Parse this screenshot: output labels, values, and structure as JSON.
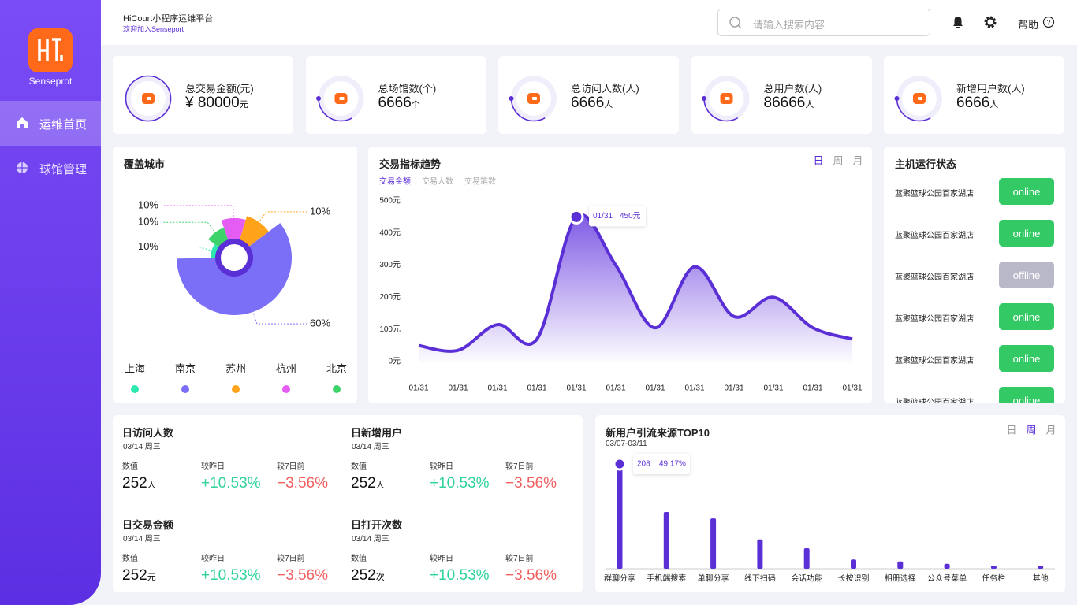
{
  "sidebar": {
    "brand": "Senseprot",
    "menu": [
      "运维首页",
      "球馆管理"
    ],
    "active": "运维首页"
  },
  "header": {
    "title": "HiCourt小程序运维平台",
    "subtitle": "欢迎加入Senseport",
    "search_placeholder": "请输入搜索内容",
    "help": "帮助"
  },
  "stats": [
    {
      "label": "总交易金额(元)",
      "value": "¥ 80000",
      "unit": "元"
    },
    {
      "label": "总场馆数(个)",
      "value": "6666",
      "unit": "个"
    },
    {
      "label": "总访问人数(人)",
      "value": "6666",
      "unit": "人"
    },
    {
      "label": "总用户数(人)",
      "value": "86666",
      "unit": "人"
    },
    {
      "label": "新增用户数(人)",
      "value": "6666",
      "unit": "人"
    }
  ],
  "city_chart": {
    "type": "pie",
    "title": "覆盖城市",
    "categories": [
      "上海",
      "南京",
      "苏州",
      "杭州",
      "北京"
    ],
    "values": [
      10,
      60,
      10,
      10,
      10
    ],
    "value_labels": [
      "10%",
      "60%",
      "10%",
      "10%",
      "10%"
    ],
    "colors": [
      "#2de8b0",
      "#7b6ff7",
      "#ffa31a",
      "#e45cf2",
      "#3ed36a"
    ]
  },
  "trend_chart": {
    "type": "line",
    "title": "交易指标趋势",
    "periods": [
      "日",
      "周",
      "月"
    ],
    "active_period": "日",
    "metrics": [
      "交易金额",
      "交易人数",
      "交易笔数"
    ],
    "active_metric": "交易金额",
    "categories": [
      "01/31",
      "01/31",
      "01/31",
      "01/31",
      "01/31",
      "01/31",
      "01/31",
      "01/31",
      "01/31",
      "01/31",
      "01/31",
      "01/31"
    ],
    "values": [
      50,
      35,
      115,
      70,
      450,
      300,
      105,
      295,
      140,
      200,
      105,
      70
    ],
    "color": "#5b2fd6",
    "ylim": [
      0,
      500
    ],
    "yticks": [
      {
        "value": 0,
        "label": "0元"
      },
      {
        "value": 100,
        "label": "100元"
      },
      {
        "value": 200,
        "label": "200元"
      },
      {
        "value": 300,
        "label": "300元"
      },
      {
        "value": 400,
        "label": "400元"
      },
      {
        "value": 500,
        "label": "500元"
      }
    ],
    "tooltip_label": "450元"
  },
  "host_status": {
    "title": "主机运行状态",
    "hosts": [
      {
        "name": "蓝聚篮球公园百家湖店",
        "status": "online"
      },
      {
        "name": "蓝聚篮球公园百家湖店",
        "status": "online"
      },
      {
        "name": "蓝聚篮球公园百家湖店",
        "status": "offline"
      },
      {
        "name": "蓝聚篮球公园百家湖店",
        "status": "online"
      },
      {
        "name": "蓝聚篮球公园百家湖店",
        "status": "online"
      },
      {
        "name": "蓝聚篮球公园百家湖店",
        "status": "online"
      }
    ]
  },
  "daily_stats": {
    "columns": [
      "数值",
      "较昨日",
      "较7日前"
    ],
    "items": [
      {
        "title": "日访问人数",
        "date": "03/14 周三",
        "value": "252",
        "unit": "人",
        "vs_yesterday": "+10.53%",
        "vs_week": "−3.56%"
      },
      {
        "title": "日新增用户",
        "date": "03/14 周三",
        "value": "252",
        "unit": "人",
        "vs_yesterday": "+10.53%",
        "vs_week": "−3.56%"
      },
      {
        "title": "日交易金额",
        "date": "03/14 周三",
        "value": "252",
        "unit": "元",
        "vs_yesterday": "+10.53%",
        "vs_week": "−3.56%"
      },
      {
        "title": "日打开次数",
        "date": "03/14 周三",
        "value": "252",
        "unit": "次",
        "vs_yesterday": "+10.53%",
        "vs_week": "−3.56%"
      }
    ]
  },
  "source_chart": {
    "type": "bar",
    "title": "新用户引流来源TOP10",
    "date": "03/07-03/11",
    "periods": [
      "日",
      "周",
      "月"
    ],
    "active_period": "周",
    "categories": [
      "群聊分享",
      "手机端搜索",
      "单聊分享",
      "线下扫码",
      "会话功能",
      "长按识别",
      "相册选择",
      "公众号菜单",
      "任务栏",
      "其他"
    ],
    "values": [
      208,
      116,
      103,
      60,
      42,
      19,
      15,
      10,
      6,
      6
    ],
    "color": "#5b2fd6",
    "tooltip_share": "49.17%"
  }
}
